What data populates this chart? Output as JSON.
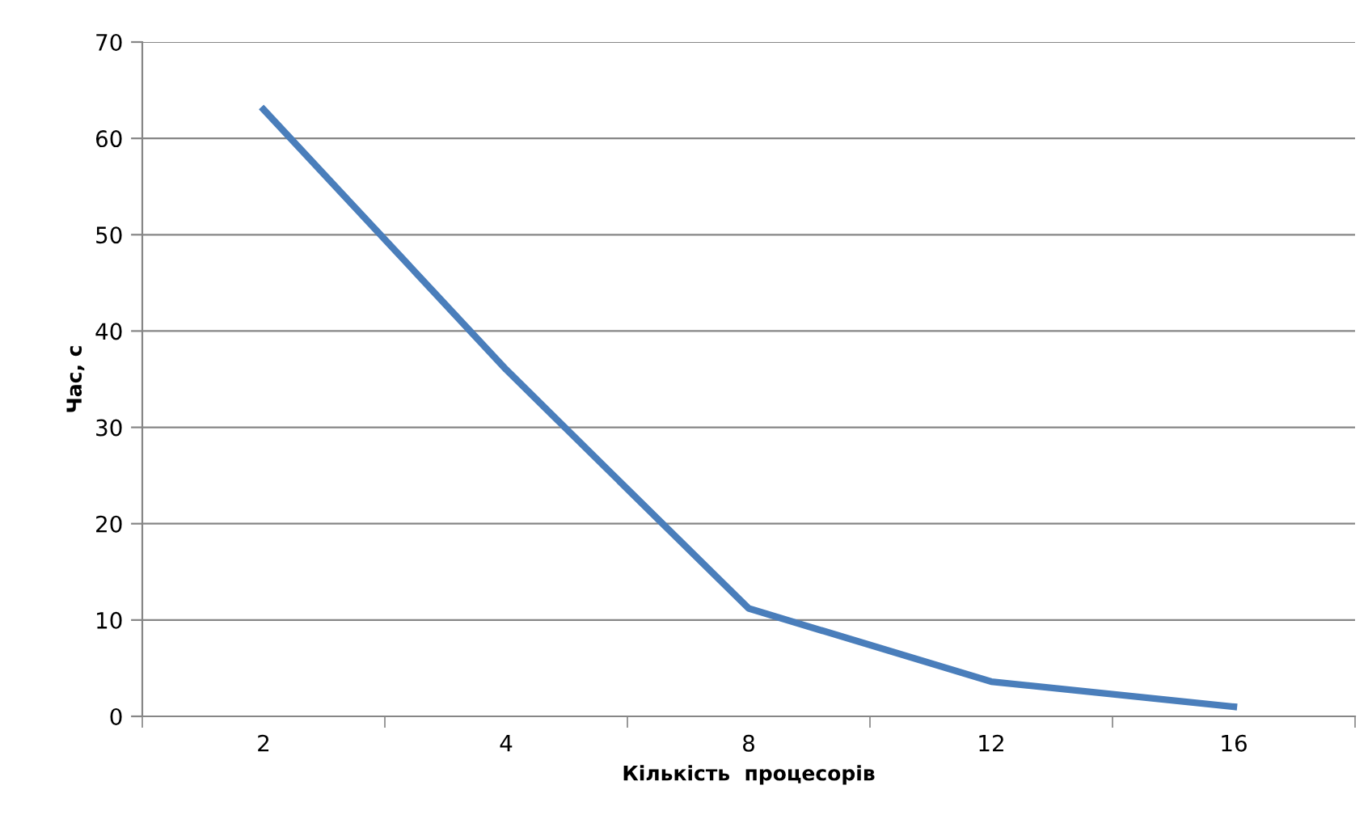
{
  "chart_data": {
    "type": "line",
    "xlabel": "Кількість  процесорів",
    "ylabel": "Час, с",
    "categories": [
      "2",
      "4",
      "8",
      "12",
      "16"
    ],
    "series": [
      {
        "color": "#4a7ebb",
        "values": [
          63,
          36,
          11.2,
          3.6,
          1.0
        ]
      }
    ],
    "ylim": [
      0,
      70
    ],
    "yticks": [
      0,
      10,
      20,
      30,
      40,
      50,
      60,
      70
    ],
    "grid": "y",
    "legend": false,
    "marker": "none",
    "line_style": "solid"
  }
}
